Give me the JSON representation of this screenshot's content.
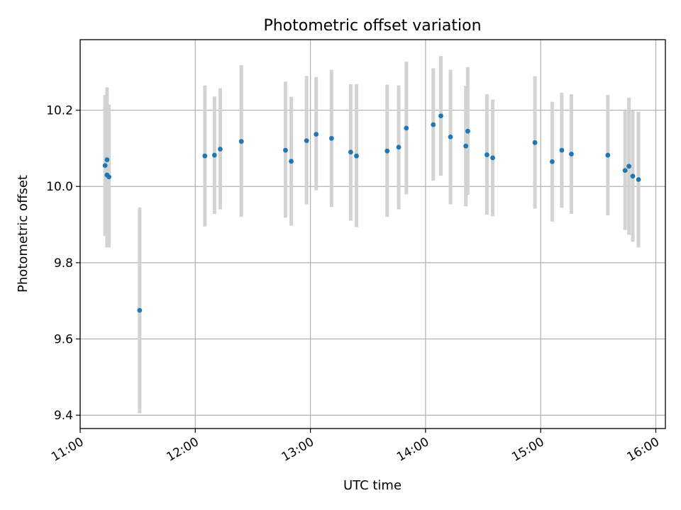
{
  "chart_data": {
    "type": "scatter",
    "title": "Photometric offset variation",
    "xlabel": "UTC time",
    "ylabel": "Photometric offset",
    "xlim": [
      "11:00",
      "16:05"
    ],
    "ylim": [
      9.365,
      10.385
    ],
    "x_ticks": [
      "11:00",
      "12:00",
      "13:00",
      "14:00",
      "15:00",
      "16:00"
    ],
    "y_ticks": [
      "9.4",
      "9.6",
      "9.8",
      "10.0",
      "10.2"
    ],
    "grid": true,
    "marker_color": "#1f77b4",
    "errorbar_color": "#d3d3d3",
    "points": [
      {
        "x": "11:13",
        "y": 10.055,
        "lo": 9.87,
        "hi": 10.24
      },
      {
        "x": "11:14",
        "y": 10.07,
        "lo": 9.88,
        "hi": 10.26
      },
      {
        "x": "11:14",
        "y": 10.03,
        "lo": 9.84,
        "hi": 10.22
      },
      {
        "x": "11:15",
        "y": 10.025,
        "lo": 9.84,
        "hi": 10.215
      },
      {
        "x": "11:31",
        "y": 9.675,
        "lo": 9.405,
        "hi": 9.945
      },
      {
        "x": "12:05",
        "y": 10.08,
        "lo": 9.895,
        "hi": 10.265
      },
      {
        "x": "12:10",
        "y": 10.082,
        "lo": 9.928,
        "hi": 10.236
      },
      {
        "x": "12:13",
        "y": 10.098,
        "lo": 9.94,
        "hi": 10.258
      },
      {
        "x": "12:24",
        "y": 10.118,
        "lo": 9.92,
        "hi": 10.318
      },
      {
        "x": "12:47",
        "y": 10.095,
        "lo": 9.918,
        "hi": 10.275
      },
      {
        "x": "12:50",
        "y": 10.066,
        "lo": 9.897,
        "hi": 10.235
      },
      {
        "x": "12:58",
        "y": 10.12,
        "lo": 9.953,
        "hi": 10.29
      },
      {
        "x": "13:03",
        "y": 10.137,
        "lo": 9.99,
        "hi": 10.287
      },
      {
        "x": "13:11",
        "y": 10.126,
        "lo": 9.946,
        "hi": 10.306
      },
      {
        "x": "13:21",
        "y": 10.09,
        "lo": 9.91,
        "hi": 10.268
      },
      {
        "x": "13:24",
        "y": 10.08,
        "lo": 9.893,
        "hi": 10.268
      },
      {
        "x": "13:40",
        "y": 10.093,
        "lo": 9.92,
        "hi": 10.267
      },
      {
        "x": "13:46",
        "y": 10.103,
        "lo": 9.94,
        "hi": 10.265
      },
      {
        "x": "13:50",
        "y": 10.153,
        "lo": 9.979,
        "hi": 10.327
      },
      {
        "x": "14:04",
        "y": 10.162,
        "lo": 10.015,
        "hi": 10.31
      },
      {
        "x": "14:08",
        "y": 10.185,
        "lo": 10.028,
        "hi": 10.342
      },
      {
        "x": "14:13",
        "y": 10.13,
        "lo": 9.953,
        "hi": 10.306
      },
      {
        "x": "14:21",
        "y": 10.106,
        "lo": 9.948,
        "hi": 10.264
      },
      {
        "x": "14:22",
        "y": 10.145,
        "lo": 9.978,
        "hi": 10.313
      },
      {
        "x": "14:32",
        "y": 10.083,
        "lo": 9.926,
        "hi": 10.242
      },
      {
        "x": "14:35",
        "y": 10.075,
        "lo": 9.922,
        "hi": 10.228
      },
      {
        "x": "14:57",
        "y": 10.115,
        "lo": 9.942,
        "hi": 10.289
      },
      {
        "x": "15:06",
        "y": 10.065,
        "lo": 9.908,
        "hi": 10.222
      },
      {
        "x": "15:11",
        "y": 10.095,
        "lo": 9.944,
        "hi": 10.246
      },
      {
        "x": "15:16",
        "y": 10.085,
        "lo": 9.928,
        "hi": 10.242
      },
      {
        "x": "15:35",
        "y": 10.082,
        "lo": 9.924,
        "hi": 10.24
      },
      {
        "x": "15:44",
        "y": 10.042,
        "lo": 9.886,
        "hi": 10.198
      },
      {
        "x": "15:46",
        "y": 10.053,
        "lo": 9.873,
        "hi": 10.233
      },
      {
        "x": "15:48",
        "y": 10.027,
        "lo": 9.855,
        "hi": 10.199
      },
      {
        "x": "15:51",
        "y": 10.018,
        "lo": 9.84,
        "hi": 10.196
      }
    ]
  }
}
